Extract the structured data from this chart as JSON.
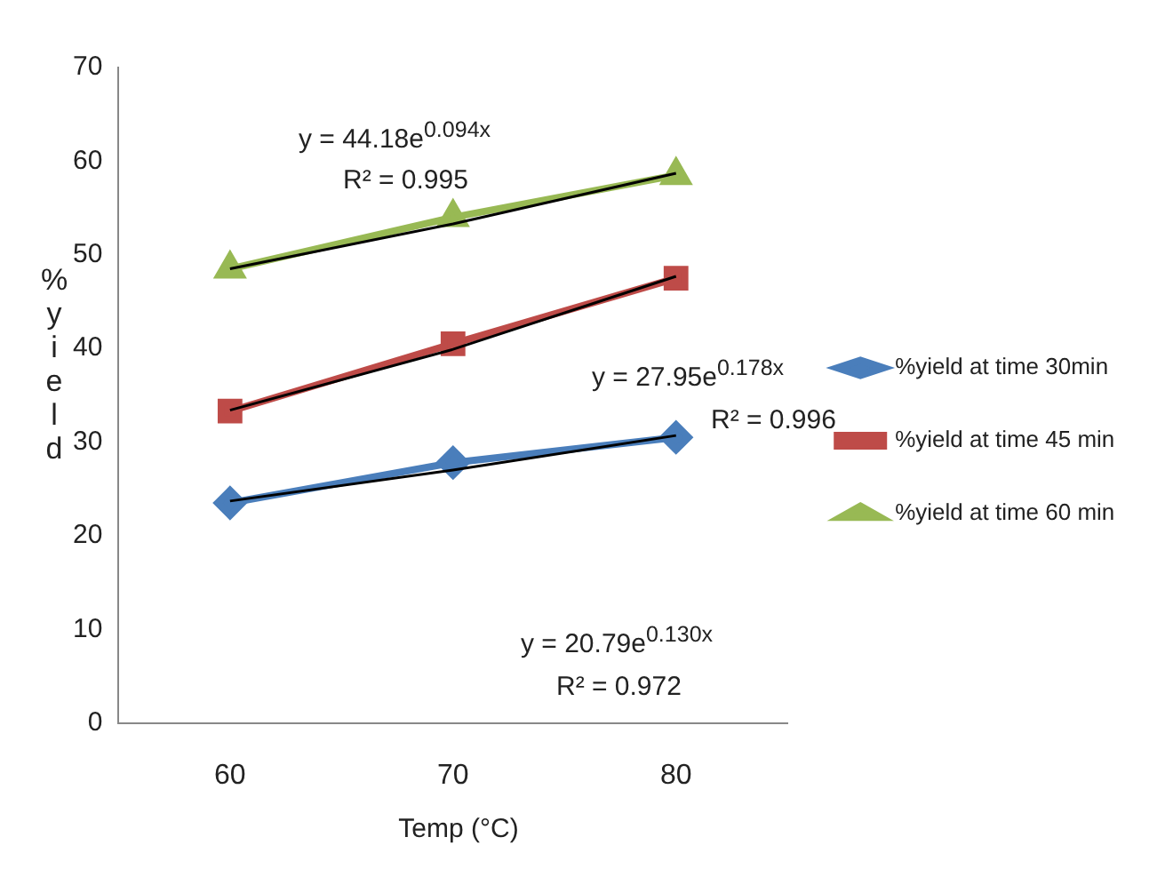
{
  "chart_data": {
    "type": "line",
    "xlabel": "Temp (°C)",
    "ylabel": "%yield",
    "categories": [
      "60",
      "70",
      "80"
    ],
    "ylim": [
      0,
      70
    ],
    "yticks": [
      0,
      10,
      20,
      30,
      40,
      50,
      60,
      70
    ],
    "grid": false,
    "legend": "right",
    "series": [
      {
        "name": "%yield at time 30min",
        "color": "#4a7ebb",
        "marker": "diamond",
        "values": [
          23.5,
          27.8,
          30.5
        ]
      },
      {
        "name": "%yield at time 45 min",
        "color": "#be4b48",
        "marker": "square",
        "values": [
          33.3,
          40.5,
          47.5
        ]
      },
      {
        "name": "%yield at time 60 min",
        "color": "#98b954",
        "marker": "triangle",
        "values": [
          48.5,
          54,
          58.5
        ]
      },
      {
        "color": "#000000",
        "marker": "none",
        "values": [
          23.7,
          27,
          30.7
        ]
      },
      {
        "color": "#000000",
        "marker": "none",
        "values": [
          33.4,
          39.9,
          47.7
        ]
      },
      {
        "color": "#000000",
        "marker": "none",
        "values": [
          48.5,
          53.3,
          58.7
        ]
      }
    ],
    "annotations": [
      "y = 44.18e$^{0.094x}$",
      "R² = 0.995",
      "y = 27.95e$^{0.178x}$",
      "R² = 0.996",
      "y = 20.79e$^{0.130x}$",
      "R² = 0.972"
    ]
  }
}
